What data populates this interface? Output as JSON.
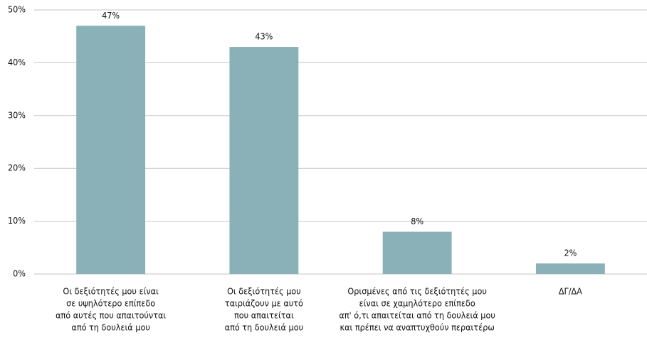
{
  "chart_data": {
    "type": "bar",
    "categories": [
      [
        "Οι δεξιότητές μου είναι",
        "σε υψηλότερο επίπεδο",
        "από αυτές που απαιτούνται",
        "από τη δουλειά μου"
      ],
      [
        "Οι δεξιότητές μου",
        "ταιριάζουν με αυτό",
        "που απαιτείται",
        "από τη δουλειά μου"
      ],
      [
        "Ορισμένες από τις δεξιότητές μου",
        "είναι σε χαμηλότερο επίπεδο",
        "απ' ό,τι απαιτείται από τη δουλειά μου",
        "και πρέπει να αναπτυχθούν περαιτέρω"
      ],
      [
        "ΔΓ/ΔΑ"
      ]
    ],
    "values": [
      47,
      43,
      8,
      2
    ],
    "value_labels": [
      "47%",
      "43%",
      "8%",
      "2%"
    ],
    "color": "#8ab0b8",
    "ylim": [
      0,
      50
    ],
    "yticks": [
      {
        "value": 0,
        "label": "0%"
      },
      {
        "value": 10,
        "label": "10%"
      },
      {
        "value": 20,
        "label": "20%"
      },
      {
        "value": 30,
        "label": "30%"
      },
      {
        "value": 40,
        "label": "40%"
      },
      {
        "value": 50,
        "label": "50%"
      }
    ],
    "grid": true
  }
}
